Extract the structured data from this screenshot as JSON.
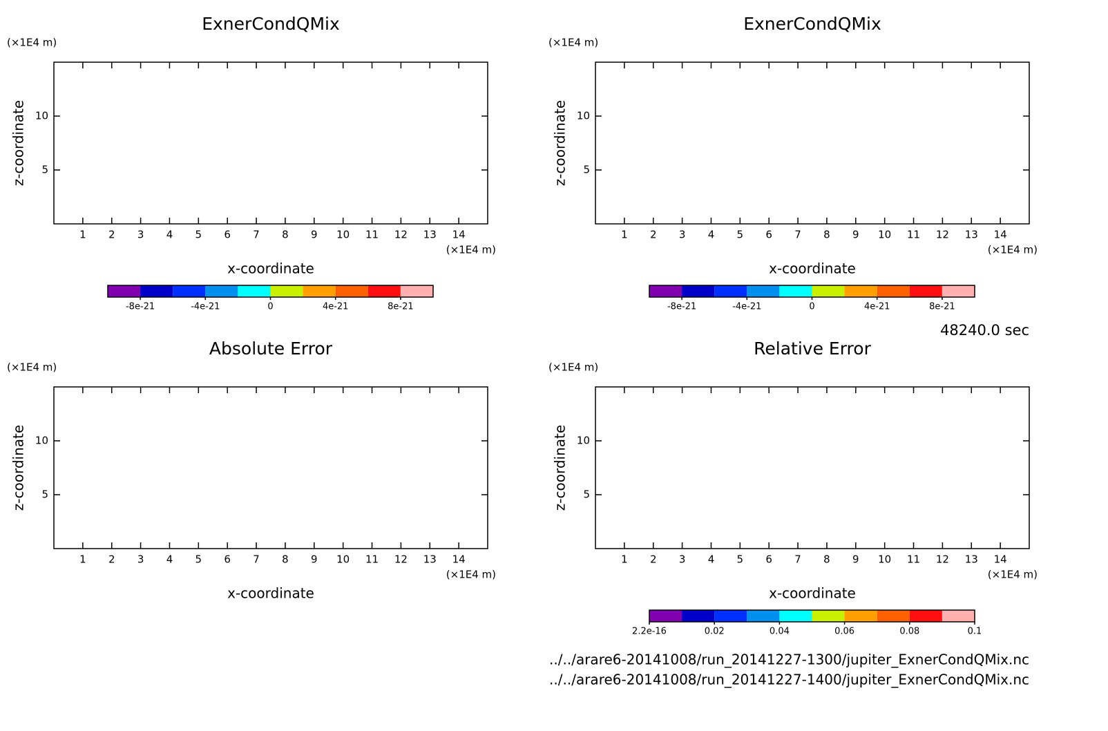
{
  "chart_data": [
    {
      "type": "contour",
      "title": "ExnerCondQMix",
      "xlabel": "x-coordinate",
      "ylabel": "z-coordinate",
      "x_unit": "(×1E4 m)",
      "y_unit": "(×1E4 m)",
      "xlim": [
        0,
        15
      ],
      "xticks": [
        1,
        2,
        3,
        4,
        5,
        6,
        7,
        8,
        9,
        10,
        11,
        12,
        13,
        14
      ],
      "ylim": [
        0,
        15
      ],
      "yticks": [
        5,
        10
      ],
      "colorbar": {
        "colors": [
          "#8000b0",
          "#0000c8",
          "#0030ff",
          "#0090f0",
          "#00ffff",
          "#c8f000",
          "#ffa000",
          "#ff6000",
          "#ff1010",
          "#ffb0b0"
        ],
        "lim": [
          -1e-20,
          1e-20
        ],
        "ticks": [
          -8e-21,
          -4e-21,
          0,
          4e-21,
          8e-21
        ]
      }
    },
    {
      "type": "contour",
      "title": "ExnerCondQMix",
      "xlabel": "x-coordinate",
      "ylabel": "z-coordinate",
      "x_unit": "(×1E4 m)",
      "y_unit": "(×1E4 m)",
      "xlim": [
        0,
        15
      ],
      "xticks": [
        1,
        2,
        3,
        4,
        5,
        6,
        7,
        8,
        9,
        10,
        11,
        12,
        13,
        14
      ],
      "ylim": [
        0,
        15
      ],
      "yticks": [
        5,
        10
      ],
      "colorbar": {
        "colors": [
          "#8000b0",
          "#0000c8",
          "#0030ff",
          "#0090f0",
          "#00ffff",
          "#c8f000",
          "#ffa000",
          "#ff6000",
          "#ff1010",
          "#ffb0b0"
        ],
        "lim": [
          -1e-20,
          1e-20
        ],
        "ticks": [
          -8e-21,
          -4e-21,
          0,
          4e-21,
          8e-21
        ]
      }
    },
    {
      "type": "contour",
      "title": "Absolute Error",
      "xlabel": "x-coordinate",
      "ylabel": "z-coordinate",
      "x_unit": "(×1E4 m)",
      "y_unit": "(×1E4 m)",
      "xlim": [
        0,
        15
      ],
      "xticks": [
        1,
        2,
        3,
        4,
        5,
        6,
        7,
        8,
        9,
        10,
        11,
        12,
        13,
        14
      ],
      "ylim": [
        0,
        15
      ],
      "yticks": [
        5,
        10
      ]
    },
    {
      "type": "contour",
      "title": "Relative Error",
      "xlabel": "x-coordinate",
      "ylabel": "z-coordinate",
      "x_unit": "(×1E4 m)",
      "y_unit": "(×1E4 m)",
      "xlim": [
        0,
        15
      ],
      "xticks": [
        1,
        2,
        3,
        4,
        5,
        6,
        7,
        8,
        9,
        10,
        11,
        12,
        13,
        14
      ],
      "ylim": [
        0,
        15
      ],
      "yticks": [
        5,
        10
      ],
      "colorbar": {
        "colors": [
          "#8000b0",
          "#0000c8",
          "#0030ff",
          "#0090f0",
          "#00ffff",
          "#c8f000",
          "#ffa000",
          "#ff6000",
          "#ff1010",
          "#ffb0b0"
        ],
        "lim": [
          2.2e-16,
          0.1
        ],
        "ticks": [
          2.2e-16,
          0.02,
          0.04,
          0.06,
          0.08,
          0.1
        ]
      }
    }
  ],
  "time_label": "48240.0 sec",
  "files": [
    "../../arare6-20141008/run_20141227-1300/jupiter_ExnerCondQMix.nc",
    "../../arare6-20141008/run_20141227-1400/jupiter_ExnerCondQMix.nc"
  ]
}
